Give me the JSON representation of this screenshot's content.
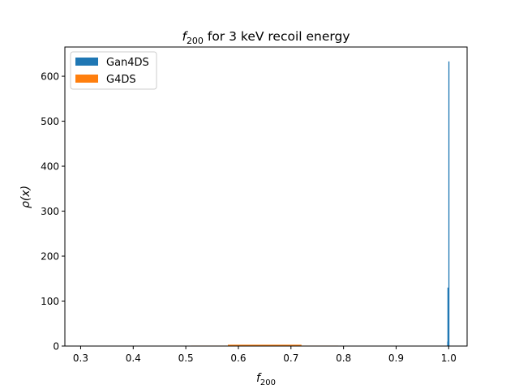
{
  "chart_data": {
    "type": "histogram",
    "title": {
      "base": "f",
      "sub": "200",
      "rest": " for 3 keV recoil energy"
    },
    "xlabel": {
      "base": "f",
      "sub": "200"
    },
    "ylabel": "ρ(x)",
    "xlim": [
      0.27,
      1.035
    ],
    "ylim": [
      0,
      665
    ],
    "xticks": [
      0.3,
      0.4,
      0.5,
      0.6,
      0.7,
      0.8,
      0.9,
      1.0
    ],
    "xtick_labels": [
      "0.3",
      "0.4",
      "0.5",
      "0.6",
      "0.7",
      "0.8",
      "0.9",
      "1.0"
    ],
    "yticks": [
      0,
      100,
      200,
      300,
      400,
      500,
      600
    ],
    "ytick_labels": [
      "0",
      "100",
      "200",
      "300",
      "400",
      "500",
      "600"
    ],
    "legend": {
      "placement": "top-left"
    },
    "series": [
      {
        "name": "Gan4DS",
        "color": "#1f77b4",
        "bins": [
          {
            "x0": 0.9972,
            "x1": 0.9976,
            "value": 10
          },
          {
            "x0": 0.9976,
            "x1": 0.998,
            "value": 130
          },
          {
            "x0": 0.998,
            "x1": 0.9984,
            "value": 8
          },
          {
            "x0": 0.9984,
            "x1": 0.9988,
            "value": 2
          },
          {
            "x0": 0.9994,
            "x1": 0.9998,
            "value": 633
          }
        ]
      },
      {
        "name": "G4DS",
        "color": "#ff7f0e",
        "bins": [
          {
            "x0": 0.51,
            "x1": 0.58,
            "value": 1
          },
          {
            "x0": 0.58,
            "x1": 0.72,
            "value": 3
          },
          {
            "x0": 0.72,
            "x1": 0.79,
            "value": 1
          }
        ]
      }
    ]
  }
}
